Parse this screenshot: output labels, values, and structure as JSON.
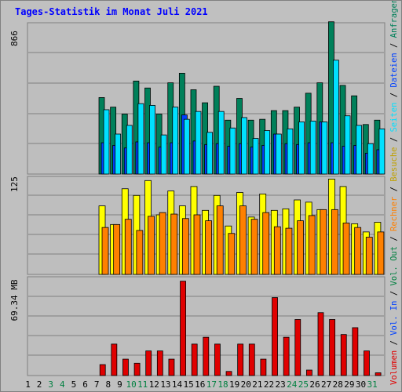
{
  "title": "Tages-Statistik im Monat Juli 2021",
  "colors": {
    "background": "#c0c0c0",
    "panel": "#bebebe",
    "title": "#0000ff",
    "anfragen": "#00805a",
    "dateien": "#0040ff",
    "seiten": "#00e0ff",
    "besuche": "#ffff00",
    "rechner": "#ff8000",
    "volumen_in": "#e00000"
  },
  "chart_data": [
    {
      "type": "bar",
      "categories": [
        "1",
        "2",
        "3",
        "4",
        "5",
        "6",
        "7",
        "8",
        "9",
        "10",
        "11",
        "12",
        "13",
        "14",
        "15",
        "16",
        "17",
        "18",
        "19",
        "20",
        "21",
        "22",
        "23",
        "24",
        "25",
        "26",
        "27",
        "28",
        "29",
        "30",
        "31"
      ],
      "weekend_days": [
        "3",
        "4",
        "10",
        "11",
        "17",
        "18",
        "24",
        "25",
        "31"
      ],
      "ytick_label": "866",
      "ylim": [
        0,
        866
      ],
      "series": [
        {
          "name": "Anfragen",
          "values": [
            0,
            0,
            0,
            0,
            0,
            0,
            440,
            385,
            345,
            535,
            495,
            345,
            525,
            580,
            485,
            410,
            505,
            310,
            435,
            310,
            315,
            365,
            365,
            385,
            465,
            525,
            876,
            510,
            450,
            285,
            310
          ]
        },
        {
          "name": "Dateien",
          "values": [
            0,
            0,
            0,
            0,
            0,
            0,
            180,
            165,
            150,
            185,
            180,
            155,
            180,
            340,
            190,
            170,
            175,
            160,
            175,
            155,
            165,
            230,
            175,
            170,
            180,
            300,
            180,
            160,
            165,
            120,
            140
          ]
        },
        {
          "name": "Seiten",
          "values": [
            0,
            0,
            0,
            0,
            0,
            0,
            370,
            230,
            280,
            405,
            395,
            225,
            385,
            315,
            360,
            240,
            360,
            265,
            325,
            205,
            250,
            230,
            260,
            300,
            305,
            300,
            655,
            335,
            280,
            175,
            260
          ]
        }
      ],
      "right_label_parts": [
        "Anfragen",
        "Dateien",
        "Seiten"
      ]
    },
    {
      "type": "bar",
      "categories": [
        "1",
        "2",
        "3",
        "4",
        "5",
        "6",
        "7",
        "8",
        "9",
        "10",
        "11",
        "12",
        "13",
        "14",
        "15",
        "16",
        "17",
        "18",
        "19",
        "20",
        "21",
        "22",
        "23",
        "24",
        "25",
        "26",
        "27",
        "28",
        "29",
        "30",
        "31"
      ],
      "ytick_label": "125",
      "ylim": [
        0,
        125
      ],
      "series": [
        {
          "name": "Besuche",
          "values": [
            0,
            0,
            0,
            0,
            0,
            0,
            92,
            67,
            115,
            106,
            126,
            80,
            112,
            92,
            118,
            86,
            106,
            65,
            110,
            77,
            108,
            86,
            88,
            100,
            97,
            87,
            128,
            118,
            68,
            57,
            70
          ]
        },
        {
          "name": "Rechner",
          "values": [
            0,
            0,
            0,
            0,
            0,
            0,
            63,
            67,
            74,
            59,
            78,
            83,
            81,
            75,
            80,
            72,
            92,
            55,
            92,
            74,
            83,
            64,
            62,
            72,
            79,
            87,
            87,
            69,
            63,
            50,
            57
          ]
        }
      ],
      "right_label_parts": [
        "Besuche",
        "Rechner",
        "Vol. Out"
      ]
    },
    {
      "type": "bar",
      "categories": [
        "1",
        "2",
        "3",
        "4",
        "5",
        "6",
        "7",
        "8",
        "9",
        "10",
        "11",
        "12",
        "13",
        "14",
        "15",
        "16",
        "17",
        "18",
        "19",
        "20",
        "21",
        "22",
        "23",
        "24",
        "25",
        "26",
        "27",
        "28",
        "29",
        "30",
        "31"
      ],
      "ytick_label": "69.34 MB",
      "ylim": [
        0,
        69.34
      ],
      "series": [
        {
          "name": "Vol. In",
          "values": [
            0,
            0,
            0,
            0,
            0,
            0,
            8,
            23,
            12,
            9,
            18,
            18,
            12,
            69,
            23,
            28,
            23,
            3,
            23,
            23,
            12,
            57,
            28,
            41,
            4,
            46,
            41,
            30,
            35,
            18,
            2
          ]
        }
      ],
      "right_label_parts": [
        "Volumen",
        "Vol. In"
      ]
    }
  ]
}
